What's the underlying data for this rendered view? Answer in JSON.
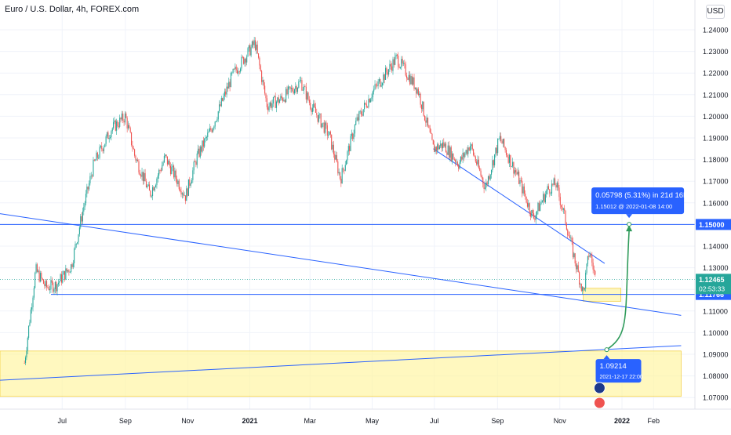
{
  "header": {
    "title": "Euro / U.S. Dollar, 4h, FOREX.com",
    "currency_button": "USD"
  },
  "colors": {
    "up": "#26a69a",
    "down": "#ef5350",
    "trendline": "#2962ff",
    "zone": "#fff59d",
    "projection_arrow": "#2e9a5a",
    "label_bg": "#2962ff",
    "last_price_bg": "#26a69a"
  },
  "chart_data": {
    "type": "candlestick",
    "title": "Euro / U.S. Dollar, 4h, FOREX.com",
    "y_axis": {
      "position": "right",
      "ticks": [
        "1.24000",
        "1.23000",
        "1.22000",
        "1.21000",
        "1.20000",
        "1.19000",
        "1.18000",
        "1.17000",
        "1.16000",
        "1.15000",
        "1.14000",
        "1.13000",
        "1.12000",
        "1.11000",
        "1.10000",
        "1.09000",
        "1.08000",
        "1.07000"
      ],
      "range": [
        1.065,
        1.248
      ]
    },
    "x_axis": {
      "ticks": [
        "Jul",
        "Sep",
        "Nov",
        "2021",
        "Mar",
        "May",
        "Jul",
        "Sep",
        "Nov",
        "2022",
        "Feb"
      ],
      "bold_ticks": [
        "2021",
        "2022"
      ]
    },
    "price_path": [
      [
        "2020-05-25",
        1.086
      ],
      [
        "2020-06-05",
        1.129
      ],
      [
        "2020-06-15",
        1.121
      ],
      [
        "2020-06-25",
        1.122
      ],
      [
        "2020-07-10",
        1.131
      ],
      [
        "2020-07-22",
        1.158
      ],
      [
        "2020-08-01",
        1.178
      ],
      [
        "2020-08-18",
        1.194
      ],
      [
        "2020-09-01",
        1.2
      ],
      [
        "2020-09-10",
        1.182
      ],
      [
        "2020-09-25",
        1.164
      ],
      [
        "2020-10-10",
        1.181
      ],
      [
        "2020-10-30",
        1.163
      ],
      [
        "2020-11-10",
        1.181
      ],
      [
        "2020-11-25",
        1.195
      ],
      [
        "2020-12-15",
        1.219
      ],
      [
        "2021-01-06",
        1.234
      ],
      [
        "2021-01-18",
        1.205
      ],
      [
        "2021-02-01",
        1.208
      ],
      [
        "2021-02-20",
        1.216
      ],
      [
        "2021-03-01",
        1.206
      ],
      [
        "2021-03-20",
        1.191
      ],
      [
        "2021-03-31",
        1.171
      ],
      [
        "2021-04-15",
        1.197
      ],
      [
        "2021-05-01",
        1.211
      ],
      [
        "2021-05-25",
        1.227
      ],
      [
        "2021-06-15",
        1.212
      ],
      [
        "2021-06-30",
        1.185
      ],
      [
        "2021-07-10",
        1.187
      ],
      [
        "2021-07-25",
        1.178
      ],
      [
        "2021-08-05",
        1.187
      ],
      [
        "2021-08-20",
        1.167
      ],
      [
        "2021-09-03",
        1.19
      ],
      [
        "2021-09-20",
        1.173
      ],
      [
        "2021-10-06",
        1.153
      ],
      [
        "2021-10-20",
        1.166
      ],
      [
        "2021-10-28",
        1.169
      ],
      [
        "2021-11-05",
        1.155
      ],
      [
        "2021-11-15",
        1.135
      ],
      [
        "2021-11-24",
        1.118
      ],
      [
        "2021-11-30",
        1.138
      ],
      [
        "2021-12-06",
        1.125
      ]
    ],
    "last_price": {
      "value": "1.12465",
      "countdown": "02:53:33"
    },
    "horizontal_levels": [
      {
        "value": 1.15,
        "label": "1.15000"
      },
      {
        "value": 1.11766,
        "label": "1.11766"
      }
    ],
    "trendlines": [
      {
        "from": [
          "2020-05-01",
          1.155
        ],
        "to": [
          "2022-02-28",
          1.108
        ]
      },
      {
        "from": [
          "2021-06-30",
          1.185
        ],
        "to": [
          "2021-12-15",
          1.132
        ]
      },
      {
        "from": [
          "2020-05-01",
          1.078
        ],
        "to": [
          "2022-02-28",
          1.094
        ]
      }
    ],
    "zones": [
      {
        "from": [
          "2020-05-01",
          1.0915
        ],
        "to": [
          "2022-02-28",
          1.0705
        ]
      },
      {
        "from": [
          "2021-11-24",
          1.1205
        ],
        "to": [
          "2021-12-31",
          1.1145
        ]
      }
    ],
    "projection": {
      "from": [
        "2021-12-17",
        1.09214
      ],
      "to": [
        "2022-01-08",
        1.15012
      ],
      "start_label": {
        "price": "1.09214",
        "time": "2021-12-17 22:00"
      },
      "end_label": {
        "line1": "0.05798 (5.31%) in 21d 16h",
        "line2": "1.15012 @ 2022-01-08  14:00"
      }
    },
    "grid": true,
    "legend": "none"
  }
}
